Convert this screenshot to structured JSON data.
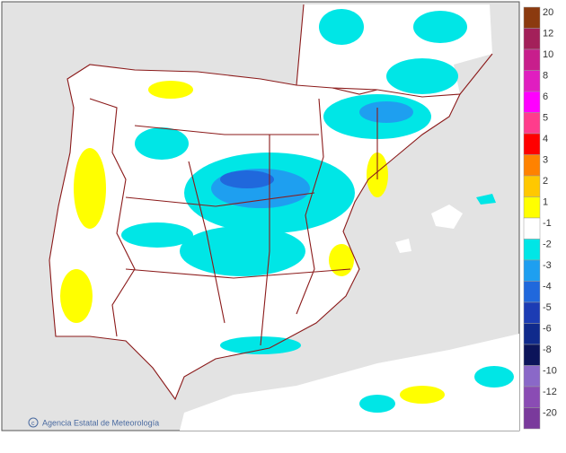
{
  "legend": {
    "entries": [
      {
        "label": 20,
        "color": "#8b3a0f"
      },
      {
        "label": 12,
        "color": "#a3205a"
      },
      {
        "label": 10,
        "color": "#c81e8c"
      },
      {
        "label": 8,
        "color": "#e01ec0"
      },
      {
        "label": 6,
        "color": "#ff00ff"
      },
      {
        "label": 5,
        "color": "#ff3c8c"
      },
      {
        "label": 4,
        "color": "#ff0000"
      },
      {
        "label": 3,
        "color": "#ff8200"
      },
      {
        "label": 2,
        "color": "#ffc800"
      },
      {
        "label": 1,
        "color": "#ffff00"
      },
      {
        "label": -1,
        "color": "#ffffff"
      },
      {
        "label": -2,
        "color": "#00e6e6"
      },
      {
        "label": -3,
        "color": "#1e9ff0"
      },
      {
        "label": -4,
        "color": "#2068dc"
      },
      {
        "label": -5,
        "color": "#1c3cb4"
      },
      {
        "label": -6,
        "color": "#102a8c"
      },
      {
        "label": -8,
        "color": "#0c145a"
      },
      {
        "label": -10,
        "color": "#8a68c8"
      },
      {
        "label": -12,
        "color": "#8a4cb4"
      },
      {
        "label": -20,
        "color": "#7a3a9c"
      }
    ]
  },
  "credit": "Agencia Estatal de Meteorología",
  "watermark": "aemet"
}
